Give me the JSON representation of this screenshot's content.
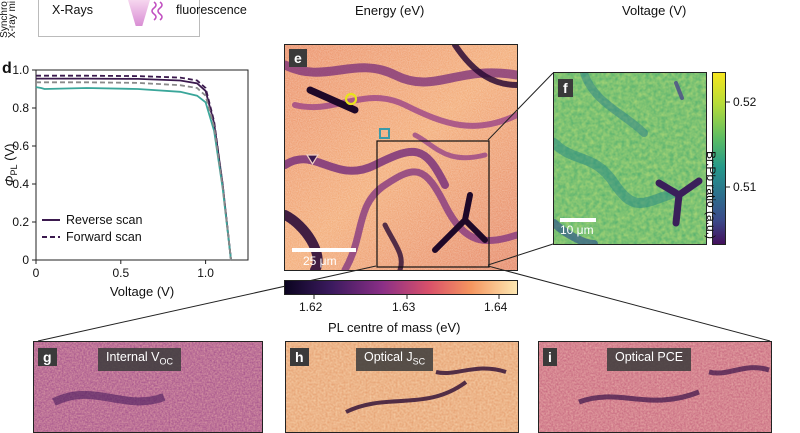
{
  "top_strip": {
    "xrays": "X-Rays",
    "fluorescence": "fluorescence",
    "side_label_1": "Synchro",
    "side_label_2": "X-ray mi",
    "energy_axis": "Energy (eV)",
    "voltage_axis": "Voltage (V)"
  },
  "panel_d": {
    "letter": "d",
    "colors": {
      "reverse": "#3b1a4e",
      "forward": "#3b1a4e",
      "cyan": "#3aa69a",
      "gray": "#8a8a8a"
    }
  },
  "panel_e": {
    "letter": "e",
    "scalebar": "25 μm",
    "colorbar_label": "PL centre of mass (eV)",
    "colorbar_ticks": [
      "1.62",
      "1.63",
      "1.64"
    ]
  },
  "panel_f": {
    "letter": "f",
    "scalebar": "10 μm",
    "colorbar_label": "Br:Pb ratio (a.u.)",
    "colorbar_ticks": [
      "0.52",
      "0.51"
    ]
  },
  "bottom_panels": [
    {
      "letter": "g",
      "label": "Internal V",
      "sub": "OC"
    },
    {
      "letter": "h",
      "label": "Optical J",
      "sub": "SC"
    },
    {
      "letter": "i",
      "label": "Optical PCE",
      "sub": ""
    }
  ],
  "chart_data": {
    "type": "line",
    "xlabel": "Voltage (V)",
    "ylabel": "Φ_PL (V)",
    "xlim": [
      0,
      1.25
    ],
    "ylim": [
      0,
      1.0
    ],
    "xticks": [
      "0",
      "0.5",
      "1.0"
    ],
    "yticks": [
      "0",
      "0.2",
      "0.4",
      "0.6",
      "0.8",
      "1.0"
    ],
    "legend": [
      "Reverse scan",
      "Forward scan"
    ],
    "legend_position": "lower-left",
    "series": [
      {
        "name": "Reverse scan",
        "style": "solid",
        "color": "#3b1a4e",
        "x": [
          0,
          0.3,
          0.6,
          0.85,
          0.95,
          1.0,
          1.05,
          1.1,
          1.15
        ],
        "y": [
          0.955,
          0.955,
          0.953,
          0.945,
          0.93,
          0.89,
          0.72,
          0.4,
          0.0
        ]
      },
      {
        "name": "Forward scan",
        "style": "dashed",
        "color": "#3b1a4e",
        "x": [
          0,
          0.3,
          0.6,
          0.85,
          0.95,
          1.0,
          1.05,
          1.1,
          1.15
        ],
        "y": [
          0.97,
          0.97,
          0.968,
          0.96,
          0.945,
          0.905,
          0.73,
          0.4,
          0.0
        ]
      },
      {
        "style": "solid",
        "color": "#3aa69a",
        "x": [
          0,
          0.03,
          0.05,
          0.3,
          0.6,
          0.85,
          0.95,
          1.0,
          1.05,
          1.1,
          1.15
        ],
        "y": [
          0.91,
          0.905,
          0.9,
          0.905,
          0.9,
          0.885,
          0.865,
          0.83,
          0.68,
          0.38,
          0.0
        ]
      },
      {
        "style": "dashed",
        "color": "#8a8a8a",
        "x": [
          0,
          0.3,
          0.6,
          0.85,
          0.95,
          1.0,
          1.05,
          1.1,
          1.15
        ],
        "y": [
          0.935,
          0.935,
          0.932,
          0.92,
          0.905,
          0.865,
          0.7,
          0.39,
          0.0
        ]
      }
    ]
  }
}
